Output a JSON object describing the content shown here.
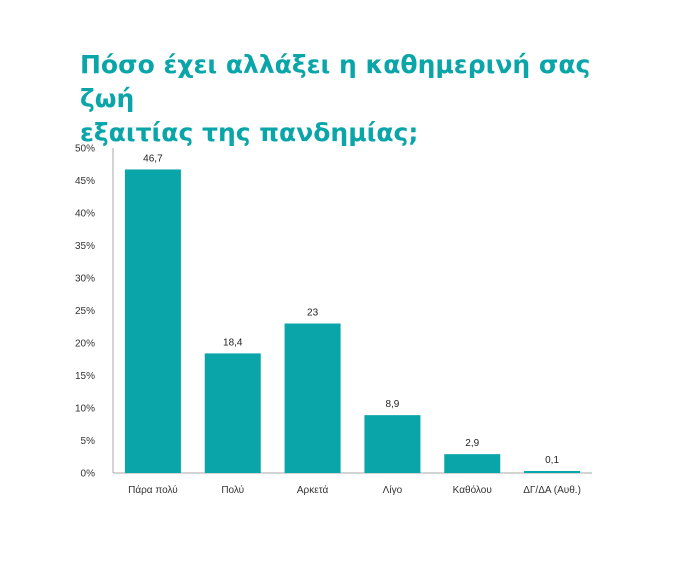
{
  "chart_data": {
    "type": "bar",
    "title_lines": [
      "Πόσο έχει αλλάξει η καθημερινή σας ζωή",
      "εξαιτίας της πανδημίας;"
    ],
    "categories": [
      "Πάρα πολύ",
      "Πολύ",
      "Αρκετά",
      "Λίγο",
      "Καθόλου",
      "ΔΓ/ΔΑ (Αυθ.)"
    ],
    "values": [
      46.7,
      18.4,
      23,
      8.9,
      2.9,
      0.1
    ],
    "value_labels": [
      "46,7",
      "18,4",
      "23",
      "8,9",
      "2,9",
      "0,1"
    ],
    "yticks": [
      "0%",
      "5%",
      "10%",
      "15%",
      "20%",
      "25%",
      "30%",
      "35%",
      "40%",
      "45%",
      "50%"
    ],
    "ylim": [
      0,
      50
    ],
    "grid": false,
    "legend": "none",
    "bar_color": "#0aa5a9",
    "title_color": "#0aa5a9"
  }
}
